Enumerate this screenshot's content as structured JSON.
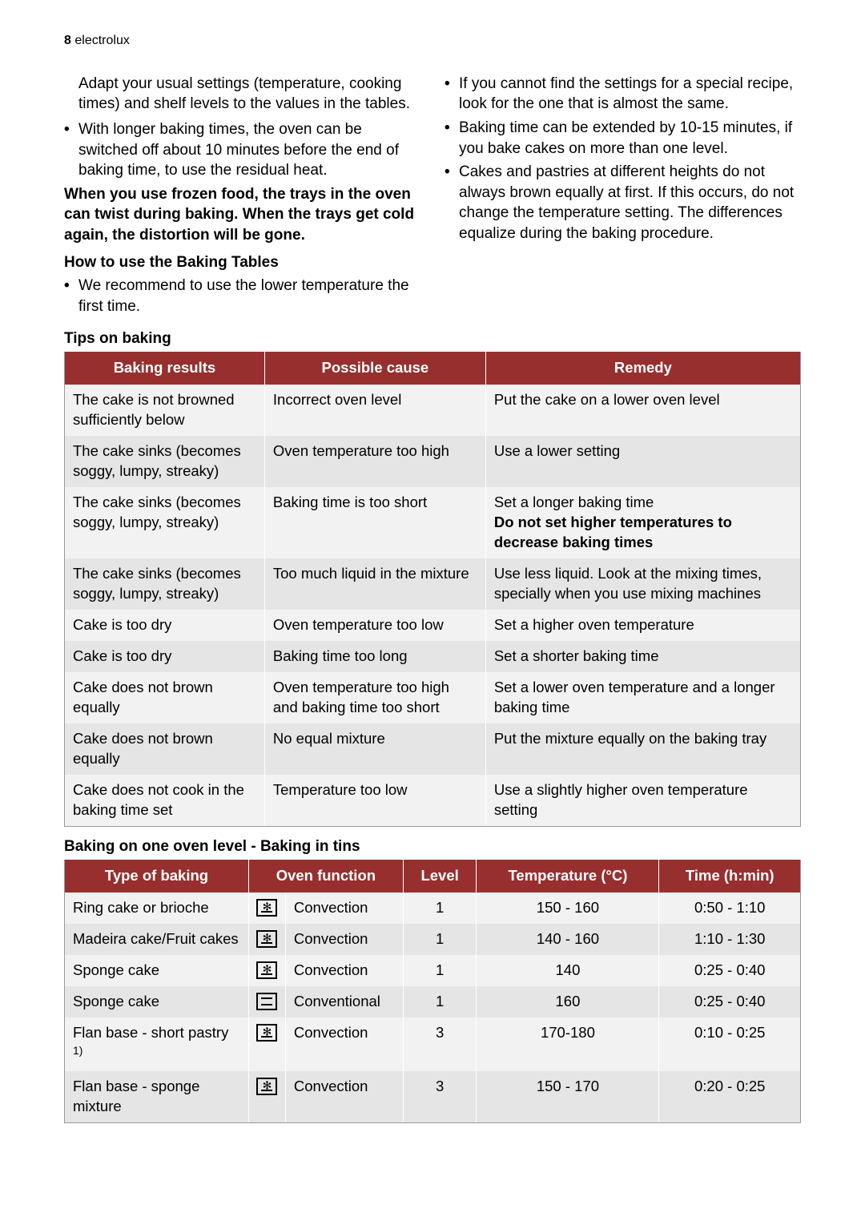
{
  "page": {
    "number": "8",
    "brand": "electrolux"
  },
  "col_left": {
    "para_adapt": "Adapt your usual settings (temperature, cooking times) and shelf levels to the values in the tables.",
    "bullet_longer": "With longer baking times, the oven can be switched off about 10 minutes before the end of baking time, to use the residual heat.",
    "frozen_bold": "When you use frozen food, the trays in the oven can twist during baking. When the trays get cold again, the distortion will be gone.",
    "heading_howto": "How to use the Baking Tables",
    "bullet_recommend": "We recommend to use the lower temperature the first time."
  },
  "col_right": {
    "bullet_special": "If you cannot find the settings for a special recipe, look for the one that is almost the same.",
    "bullet_extend": "Baking time can be extended by 10-15 minutes, if you bake cakes on more than one level.",
    "bullet_heights": "Cakes and pastries at different heights do not always brown equally at first. If this occurs, do not change the temperature setting. The differences equalize during the baking procedure."
  },
  "tips_heading": "Tips on baking",
  "tips_table": {
    "headers": [
      "Baking results",
      "Possible cause",
      "Remedy"
    ],
    "rows": [
      {
        "r": "The cake is not browned sufficiently below",
        "c": "Incorrect oven level",
        "m": "Put the cake on a lower oven level",
        "stripe": "a"
      },
      {
        "r": "The cake sinks (becomes soggy, lumpy, streaky)",
        "c": "Oven temperature too high",
        "m": "Use a lower setting",
        "stripe": "b"
      },
      {
        "r": "The cake sinks (becomes soggy, lumpy, streaky)",
        "c": "Baking time is too short",
        "m": "Set a longer baking time",
        "m_bold": "Do not set higher temperatures to decrease baking times",
        "stripe": "a"
      },
      {
        "r": "The cake sinks (becomes soggy, lumpy, streaky)",
        "c": "Too much liquid in the mixture",
        "m": "Use less liquid. Look at the mixing times, specially when you use mixing machines",
        "stripe": "b"
      },
      {
        "r": "Cake is too dry",
        "c": "Oven temperature too low",
        "m": "Set a higher oven temperature",
        "stripe": "a"
      },
      {
        "r": "Cake is too dry",
        "c": "Baking time too long",
        "m": "Set a shorter baking time",
        "stripe": "b"
      },
      {
        "r": "Cake does not brown equally",
        "c": "Oven temperature too high and baking time too short",
        "m": "Set a lower oven temperature and a longer baking time",
        "stripe": "a"
      },
      {
        "r": "Cake does not brown equally",
        "c": "No equal mixture",
        "m": "Put the mixture equally on the baking tray",
        "stripe": "b"
      },
      {
        "r": "Cake does not cook in the baking time set",
        "c": "Temperature too low",
        "m": "Use a slightly higher oven temperature setting",
        "stripe": "a"
      }
    ]
  },
  "baking_heading": "Baking on one oven level - Baking in tins",
  "baking_table": {
    "headers": [
      "Type of baking",
      "Oven function",
      "Level",
      "Temperature (°C)",
      "Time (h:min)"
    ],
    "rows": [
      {
        "type": "Ring cake or brioche",
        "icon": "fan",
        "func": "Convection",
        "level": "1",
        "temp": "150 - 160",
        "time": "0:50 - 1:10",
        "stripe": "a"
      },
      {
        "type": "Madeira cake/Fruit cakes",
        "icon": "fan",
        "func": "Convection",
        "level": "1",
        "temp": "140 - 160",
        "time": "1:10 - 1:30",
        "stripe": "b"
      },
      {
        "type": "Sponge cake",
        "icon": "fan",
        "func": "Convection",
        "level": "1",
        "temp": "140",
        "time": "0:25 - 0:40",
        "stripe": "a"
      },
      {
        "type": "Sponge cake",
        "icon": "conv",
        "func": "Conventional",
        "level": "1",
        "temp": "160",
        "time": "0:25 - 0:40",
        "stripe": "b"
      },
      {
        "type": "Flan base - short pastry",
        "sup": "1)",
        "icon": "fan",
        "func": "Convection",
        "level": "3",
        "temp": "170-180",
        "time": "0:10 - 0:25",
        "stripe": "a"
      },
      {
        "type": "Flan base - sponge mixture",
        "icon": "fan",
        "func": "Convection",
        "level": "3",
        "temp": "150 - 170",
        "time": "0:20 - 0:25",
        "stripe": "b"
      }
    ]
  }
}
